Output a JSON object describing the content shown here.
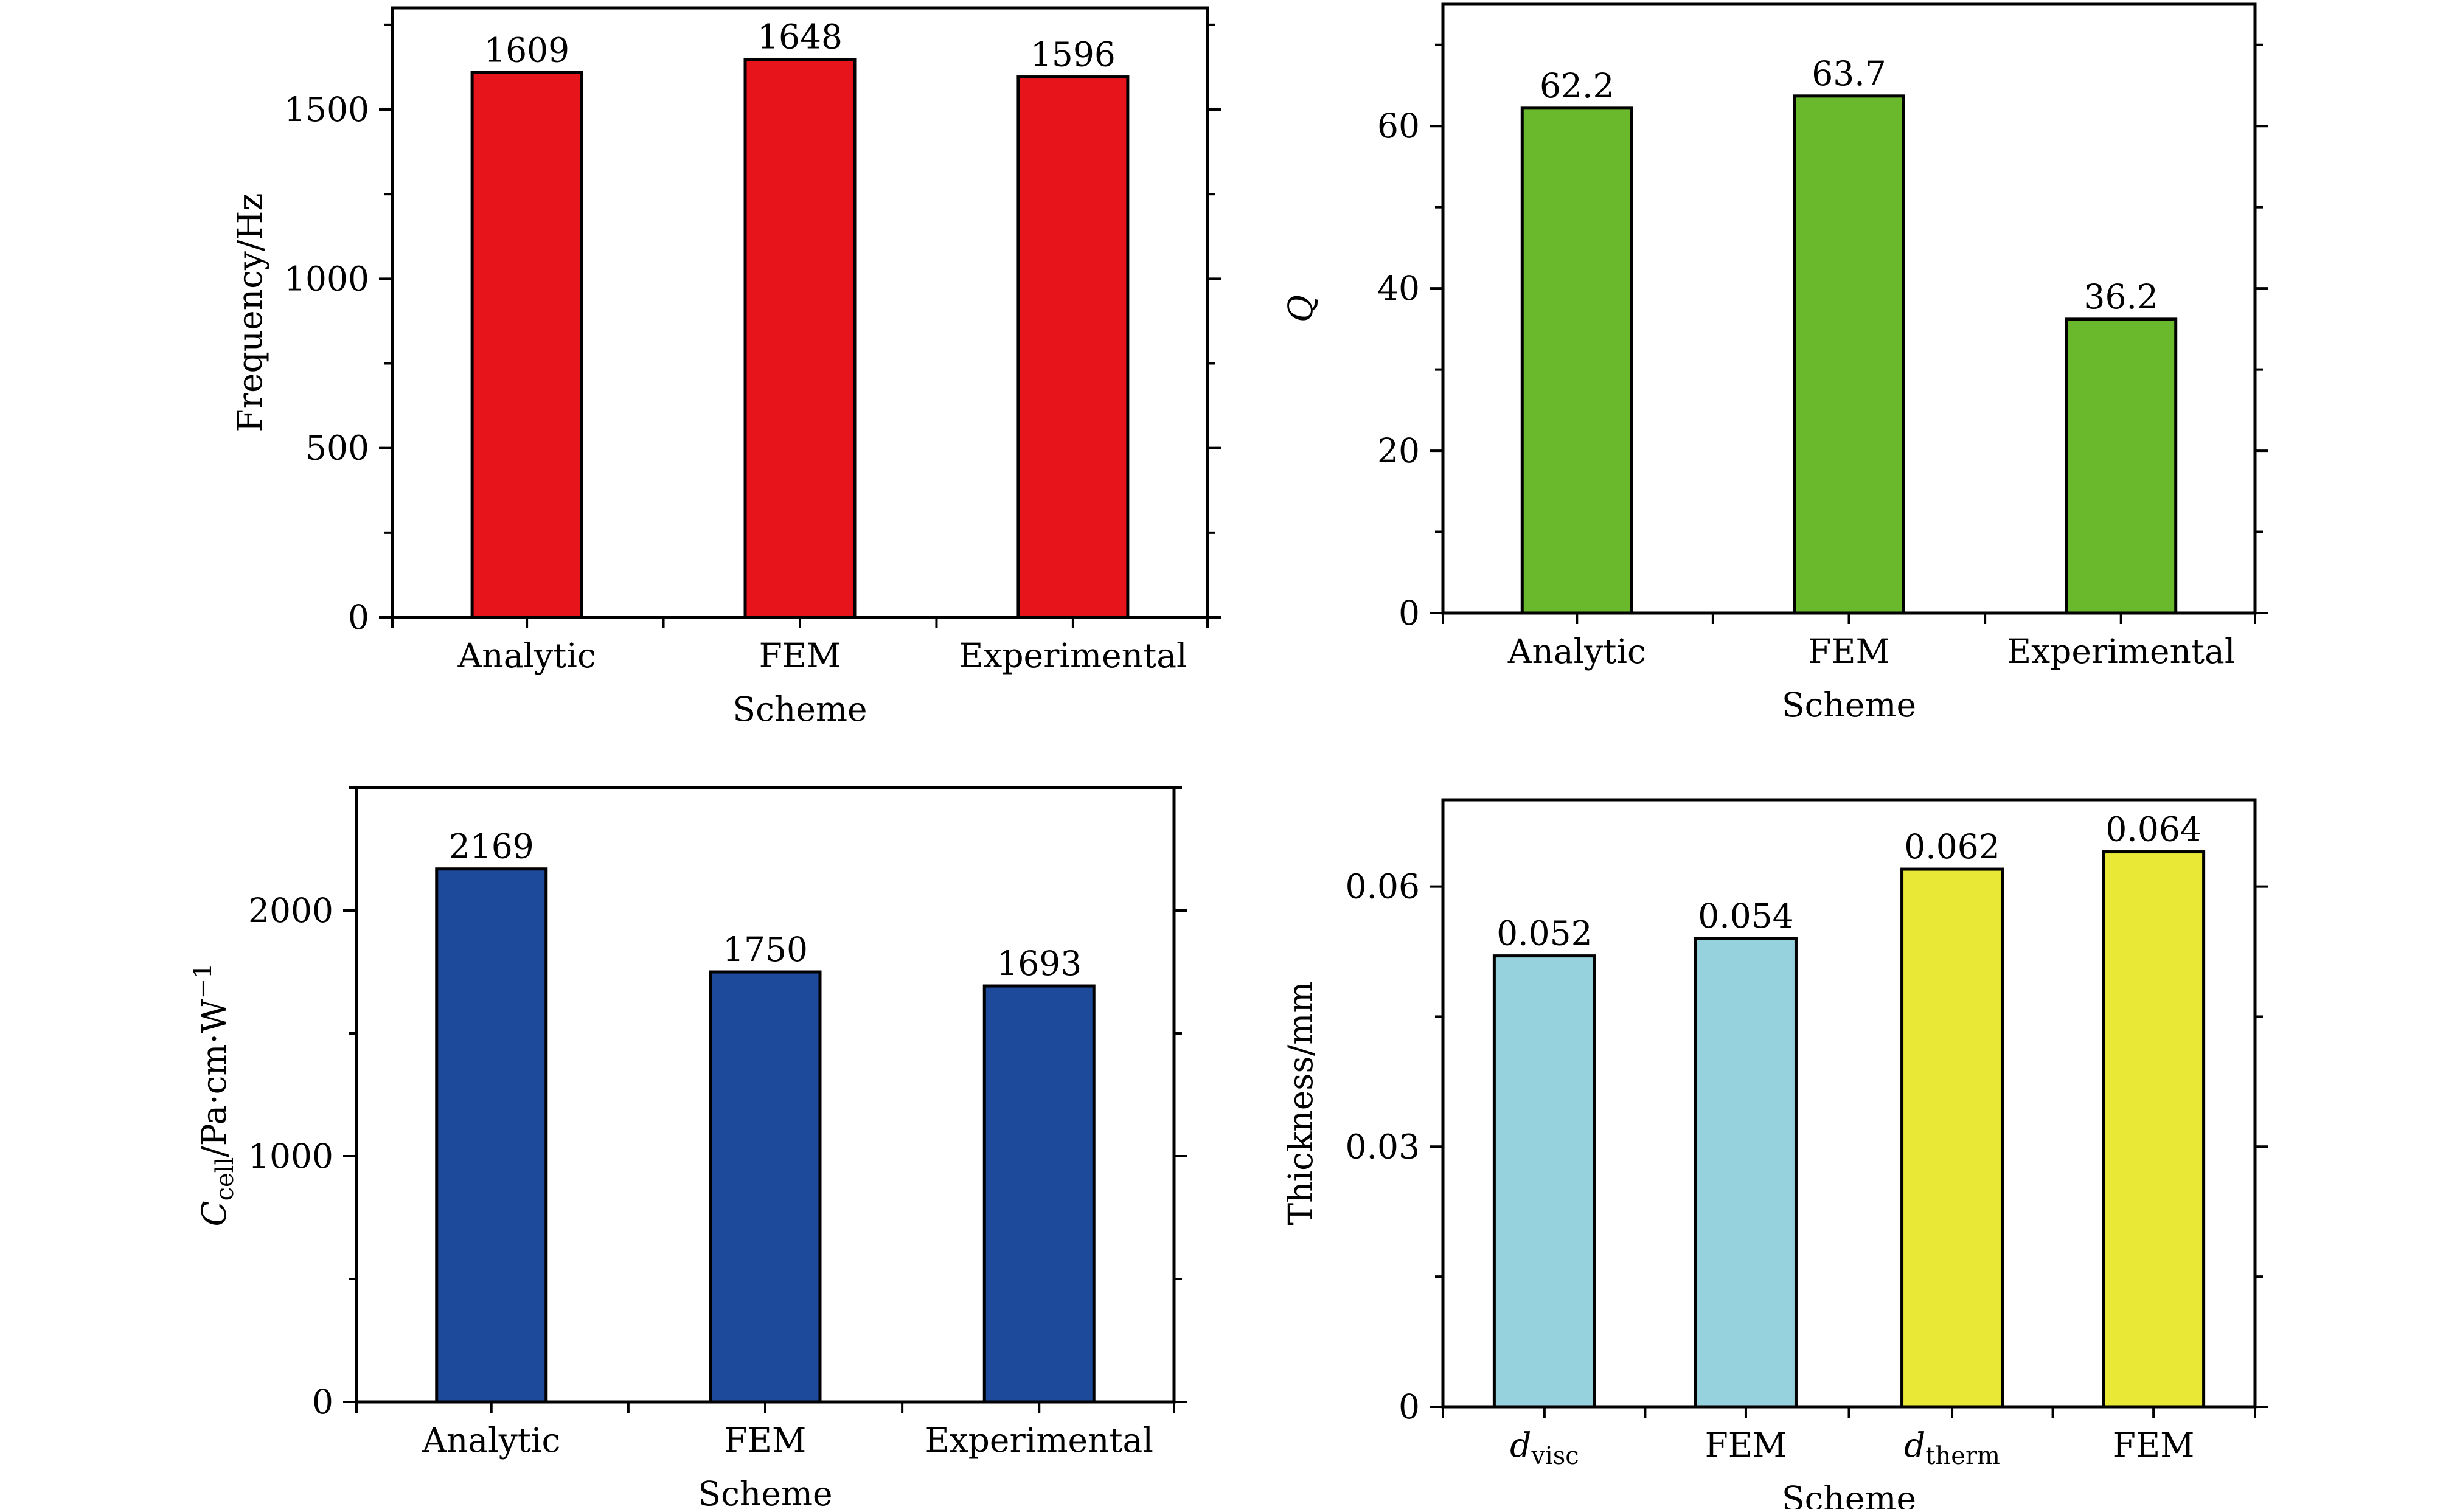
{
  "chart_data": [
    {
      "type": "bar",
      "categories": [
        "Analytic",
        "FEM",
        "Experimental"
      ],
      "values": [
        1609,
        1648,
        1596
      ],
      "value_labels": [
        "1609",
        "1648",
        "1596"
      ],
      "colors": [
        "#E8141C",
        "#E8141C",
        "#E8141C"
      ],
      "xlabel": "Scheme",
      "ylabel": "Frequency/Hz",
      "ylim": [
        0,
        1800
      ],
      "yticks": [
        0,
        500,
        1000,
        1500
      ],
      "grid": false
    },
    {
      "type": "bar",
      "categories": [
        "Analytic",
        "FEM",
        "Experimental"
      ],
      "values": [
        62.2,
        63.7,
        36.2
      ],
      "value_labels": [
        "62.2",
        "63.7",
        "36.2"
      ],
      "colors": [
        "#6AB82C",
        "#6AB82C",
        "#6AB82C"
      ],
      "xlabel": "Scheme",
      "ylabel": "Q",
      "ylim": [
        0,
        75
      ],
      "yticks": [
        0,
        20,
        40,
        60
      ],
      "grid": false
    },
    {
      "type": "bar",
      "categories": [
        "Analytic",
        "FEM",
        "Experimental"
      ],
      "values": [
        2169,
        1750,
        1693
      ],
      "value_labels": [
        "2169",
        "1750",
        "1693"
      ],
      "colors": [
        "#1E4A9B",
        "#1E4A9B",
        "#1E4A9B"
      ],
      "xlabel": "Scheme",
      "ylabel": "C_cell/Pa·cm·W^−1",
      "ylabel_parts": [
        "C",
        "cell",
        "/Pa·cm·W",
        "−1"
      ],
      "ylim": [
        0,
        2500
      ],
      "yticks": [
        0,
        1000,
        2000
      ],
      "grid": false
    },
    {
      "type": "bar",
      "categories": [
        "d_visc",
        "FEM",
        "d_therm",
        "FEM"
      ],
      "category_parts": [
        [
          "d",
          "visc"
        ],
        [
          "FEM",
          ""
        ],
        [
          "d",
          "therm"
        ],
        [
          "FEM",
          ""
        ]
      ],
      "values": [
        0.052,
        0.054,
        0.062,
        0.064
      ],
      "value_labels": [
        "0.052",
        "0.054",
        "0.062",
        "0.064"
      ],
      "colors": [
        "#96D2DE",
        "#96D2DE",
        "#EAE836",
        "#EAE836"
      ],
      "xlabel": "Scheme",
      "ylabel": "Thickness/mm",
      "ylim": [
        0,
        0.07
      ],
      "yticks": [
        0,
        0.03,
        0.06
      ],
      "ytick_labels": [
        "0",
        "0.03",
        "0.06"
      ],
      "grid": false
    }
  ]
}
